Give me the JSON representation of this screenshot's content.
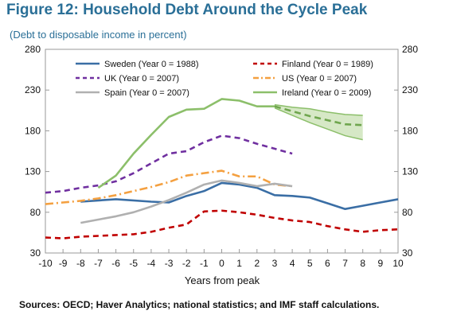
{
  "header": {
    "title": "Figure 12: Household Debt Around the Cycle Peak",
    "subtitle": "(Debt to disposable income in percent)"
  },
  "footer": {
    "source": "Sources: OECD; Haver Analytics; national statistics; and IMF staff calculations."
  },
  "chart_data": {
    "type": "line",
    "title": "Figure 12: Household Debt Around the Cycle Peak",
    "subtitle": "(Debt to disposable income in percent)",
    "xlabel": "Years from peak",
    "ylabel": "",
    "xlim": [
      -10,
      10
    ],
    "ylim": [
      30,
      280
    ],
    "x_ticks": [
      -10,
      -9,
      -8,
      -7,
      -6,
      -5,
      -4,
      -3,
      -2,
      -1,
      0,
      1,
      2,
      3,
      4,
      5,
      6,
      7,
      8,
      9,
      10
    ],
    "y_ticks": [
      30,
      80,
      130,
      180,
      230,
      280
    ],
    "y_axis_both_sides": true,
    "grid": false,
    "legend_position": "top",
    "series": [
      {
        "name": "Sweden (Year 0 = 1988)",
        "color": "#3a6ea5",
        "style": "solid",
        "x": [
          -8,
          -6,
          -4,
          -3,
          -2,
          -1,
          0,
          1,
          2,
          3,
          4,
          5,
          6,
          7,
          8,
          9,
          10
        ],
        "y": [
          93,
          96,
          93,
          92,
          100,
          106,
          116,
          114,
          110,
          101,
          100,
          98,
          91,
          84,
          88,
          92,
          96
        ]
      },
      {
        "name": "Finland (Year 0 = 1989)",
        "color": "#c00000",
        "style": "dashed",
        "x": [
          -10,
          -9,
          -8,
          -7,
          -6,
          -5,
          -4,
          -3,
          -2,
          -1,
          0,
          1,
          2,
          3,
          4,
          5,
          6,
          7,
          8,
          9,
          10
        ],
        "y": [
          49,
          48,
          50,
          51,
          52,
          53,
          56,
          61,
          65,
          81,
          82,
          80,
          77,
          73,
          70,
          68,
          63,
          59,
          56,
          58,
          59
        ]
      },
      {
        "name": "UK (Year 0 = 2007)",
        "color": "#7030a0",
        "style": "dashed",
        "x": [
          -10,
          -9,
          -8,
          -7,
          -6,
          -5,
          -4,
          -3,
          -2,
          -1,
          0,
          1,
          2,
          3,
          4
        ],
        "y": [
          104,
          106,
          110,
          113,
          118,
          128,
          140,
          152,
          155,
          166,
          174,
          171,
          164,
          158,
          152
        ]
      },
      {
        "name": "US (Year 0 = 2007)",
        "color": "#f4a040",
        "style": "dashdot",
        "x": [
          -10,
          -9,
          -8,
          -7,
          -6,
          -5,
          -4,
          -3,
          -2,
          -1,
          0,
          1,
          2,
          3,
          4
        ],
        "y": [
          90,
          92,
          94,
          97,
          101,
          106,
          111,
          117,
          125,
          128,
          131,
          124,
          124,
          114,
          112
        ]
      },
      {
        "name": "Spain (Year 0 = 2007)",
        "color": "#b0b0b0",
        "style": "solid",
        "x": [
          -8,
          -7,
          -6,
          -5,
          -4,
          -3,
          -2,
          -1,
          0,
          1,
          2,
          3,
          4
        ],
        "y": [
          67,
          71,
          75,
          80,
          87,
          95,
          104,
          114,
          119,
          116,
          112,
          115,
          112
        ]
      },
      {
        "name": "Ireland (Year 0 = 2009)",
        "color": "#8cbf6a",
        "style": "solid",
        "x": [
          -7,
          -6,
          -5,
          -4,
          -3,
          -2,
          -1,
          0,
          1,
          2,
          3
        ],
        "y": [
          110,
          125,
          152,
          175,
          197,
          206,
          207,
          219,
          217,
          210,
          210
        ]
      }
    ],
    "ireland_projection": {
      "color": "#8cbf6a",
      "style": "dashed",
      "x": [
        3,
        4,
        5,
        6,
        7,
        8
      ],
      "y": [
        210,
        204,
        198,
        193,
        188,
        187
      ],
      "band_upper": [
        212,
        209,
        207,
        203,
        200,
        199
      ],
      "band_lower": [
        208,
        199,
        190,
        182,
        174,
        169
      ]
    }
  }
}
